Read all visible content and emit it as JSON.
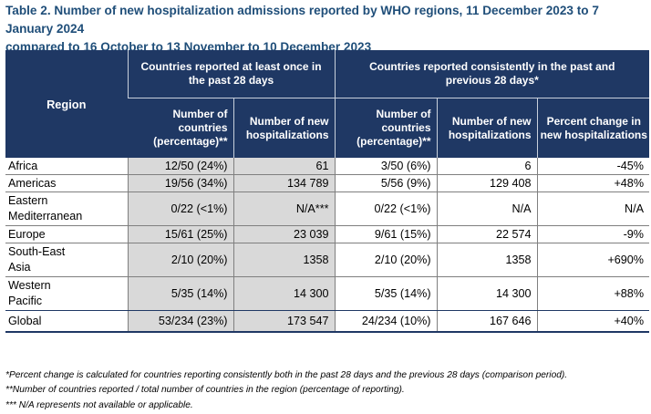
{
  "title_line1": "Table 2. Number of new hospitalization admissions reported by WHO regions, 11 December 2023 to 7 January 2024",
  "title_line2": "compared to 16 October to 13 November to 10 December 2023",
  "header": {
    "region": "Region",
    "group1_line1": "Countries reported at least once in",
    "group1_line2": "the past 28 days",
    "group2_line1": "Countries reported consistently in the past and",
    "group2_line2": "previous 28 days*",
    "cols": {
      "g1_countries": [
        "Number of",
        "countries",
        "(percentage)**"
      ],
      "g1_hosp": [
        "Number of new",
        "hospitalizations"
      ],
      "g2_countries": [
        "Number of",
        "countries",
        "(percentage)**"
      ],
      "g2_hosp": [
        "Number of new",
        "hospitalizations"
      ],
      "g2_change": [
        "Percent change in",
        "new hospitalizations"
      ]
    }
  },
  "rows": [
    {
      "region": [
        "Africa"
      ],
      "g1_countries": "12/50 (24%)",
      "g1_hosp": "61",
      "g2_countries": "3/50 (6%)",
      "g2_hosp": "6",
      "g2_change": "-45%"
    },
    {
      "region": [
        "Americas"
      ],
      "g1_countries": "19/56 (34%)",
      "g1_hosp": "134 789",
      "g2_countries": "5/56 (9%)",
      "g2_hosp": "129 408",
      "g2_change": "+48%"
    },
    {
      "region": [
        "Eastern",
        "Mediterranean"
      ],
      "g1_countries": "0/22 (<1%)",
      "g1_hosp": "N/A***",
      "g2_countries": "0/22 (<1%)",
      "g2_hosp": "N/A",
      "g2_change": "N/A"
    },
    {
      "region": [
        "Europe"
      ],
      "g1_countries": "15/61 (25%)",
      "g1_hosp": "23 039",
      "g2_countries": "9/61 (15%)",
      "g2_hosp": "22 574",
      "g2_change": "-9%"
    },
    {
      "region": [
        "South-East",
        "Asia"
      ],
      "g1_countries": "2/10 (20%)",
      "g1_hosp": "1358",
      "g2_countries": "2/10 (20%)",
      "g2_hosp": "1358",
      "g2_change": "+690%"
    },
    {
      "region": [
        "Western",
        "Pacific"
      ],
      "g1_countries": "5/35 (14%)",
      "g1_hosp": "14 300",
      "g2_countries": "5/35 (14%)",
      "g2_hosp": "14 300",
      "g2_change": "+88%"
    },
    {
      "region": [
        "Global"
      ],
      "g1_countries": "53/234 (23%)",
      "g1_hosp": "173 547",
      "g2_countries": "24/234 (10%)",
      "g2_hosp": "167 646",
      "g2_change": "+40%"
    }
  ],
  "footnotes": [
    "*Percent change is calculated for countries reporting consistently both in the past 28 days and the previous 28 days (comparison period).",
    "**Number of countries reported / total number of countries in the region (percentage of reporting).",
    "*** N/A represents not available or applicable."
  ]
}
